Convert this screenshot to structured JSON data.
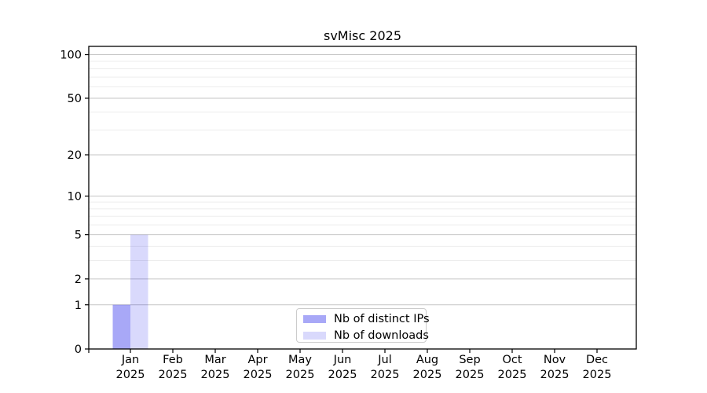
{
  "chart_data": {
    "type": "bar",
    "title": "svMisc 2025",
    "categories": [
      "Jan",
      "Feb",
      "Mar",
      "Apr",
      "May",
      "Jun",
      "Jul",
      "Aug",
      "Sep",
      "Oct",
      "Nov",
      "Dec"
    ],
    "year_label": "2025",
    "series": [
      {
        "name": "Nb of distinct IPs",
        "fill": "#0000e8",
        "fill_opacity": 0.34,
        "composited_color": "#a9a9f7",
        "values": [
          1,
          0,
          0,
          0,
          0,
          0,
          0,
          0,
          0,
          0,
          0,
          0
        ]
      },
      {
        "name": "Nb of downloads",
        "fill": "#0000e8",
        "fill_opacity": 0.15,
        "composited_color": "#d9d9f7",
        "values": [
          5,
          0,
          0,
          0,
          0,
          0,
          0,
          0,
          0,
          0,
          0,
          0
        ]
      }
    ],
    "y_axis": {
      "scale": "log10(1+x)",
      "tick_values": [
        0,
        1,
        2,
        5,
        10,
        20,
        50,
        100
      ],
      "minor_gridlines": [
        3,
        4,
        6,
        7,
        8,
        9,
        30,
        40,
        60,
        70,
        80,
        90
      ],
      "max": 114
    },
    "x_axis": {
      "tick_labels_line1": [
        "Jan",
        "Feb",
        "Mar",
        "Apr",
        "May",
        "Jun",
        "Jul",
        "Aug",
        "Sep",
        "Oct",
        "Nov",
        "Dec"
      ],
      "tick_labels_line2": [
        "2025",
        "2025",
        "2025",
        "2025",
        "2025",
        "2025",
        "2025",
        "2025",
        "2025",
        "2025",
        "2025",
        "2025"
      ]
    },
    "grid": {
      "major_color": "#c6c6c6",
      "minor_color": "#ededed"
    },
    "axis_color": "#000000",
    "legend_position": "bottom-center"
  }
}
